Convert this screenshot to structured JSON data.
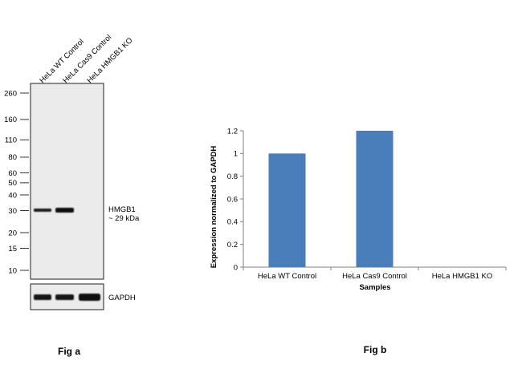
{
  "fig_a": {
    "caption": "Fig a",
    "lanes": [
      "HeLa WT Control",
      "HeLa Cas9 Control",
      "HeLa HMGB1 KO"
    ],
    "markers": [
      260,
      160,
      110,
      80,
      60,
      50,
      40,
      30,
      20,
      15,
      10
    ],
    "band_name": "HMGB1",
    "band_size": "~ 29 kDa",
    "loading_control": "GAPDH"
  },
  "fig_b": {
    "caption": "Fig b"
  },
  "chart_data": {
    "type": "bar",
    "categories": [
      "HeLa WT Control",
      "HeLa Cas9 Control",
      "HeLa HMGB1 KO"
    ],
    "values": [
      1.0,
      1.2,
      0.0
    ],
    "xlabel": "Samples",
    "ylabel": "Expression  normalized to GAPDH",
    "ylim": [
      0,
      1.2
    ],
    "yticks": [
      0,
      0.2,
      0.4,
      0.6,
      0.8,
      1,
      1.2
    ],
    "bar_color": "#4a7ebb",
    "grid": false,
    "legend": "none"
  }
}
